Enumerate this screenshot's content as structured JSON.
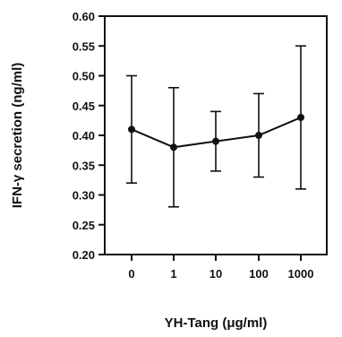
{
  "chart_data": {
    "type": "line",
    "xlabel": "YH-Tang (μg/ml)",
    "ylabel": "IFN-γ secretion (ng/ml)",
    "categories": [
      "0",
      "1",
      "10",
      "100",
      "1000"
    ],
    "series": [
      {
        "values": [
          0.41,
          0.38,
          0.39,
          0.4,
          0.43
        ],
        "error_low": [
          0.32,
          0.28,
          0.34,
          0.33,
          0.31
        ],
        "error_high": [
          0.5,
          0.48,
          0.44,
          0.47,
          0.55
        ]
      }
    ],
    "ylim": [
      0.2,
      0.6
    ],
    "yticks": [
      0.2,
      0.25,
      0.3,
      0.35,
      0.4,
      0.45,
      0.5,
      0.55,
      0.6
    ],
    "ytick_labels": [
      "0.20",
      "0.25",
      "0.30",
      "0.35",
      "0.40",
      "0.45",
      "0.50",
      "0.55",
      "0.60"
    ],
    "grid": false,
    "legend": "none",
    "line_color": "#111111"
  }
}
